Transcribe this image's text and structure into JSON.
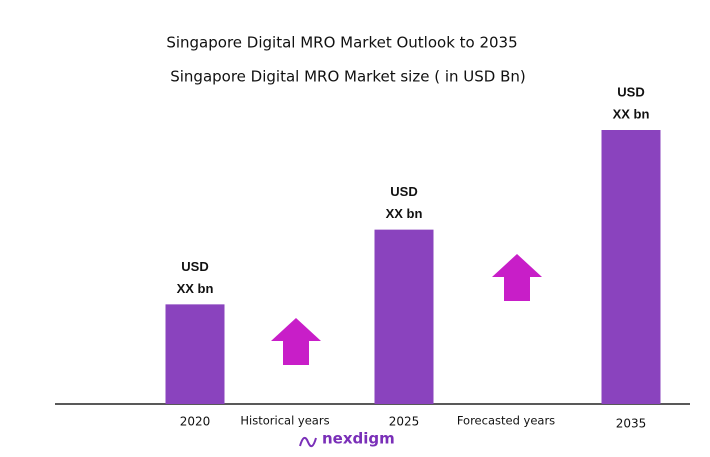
{
  "chart_data": {
    "type": "bar",
    "title": "Singapore Digital MRO Market Outlook to 2035",
    "subtitle": "Singapore Digital MRO Market size ( in USD Bn)",
    "categories": [
      "2020",
      "2025",
      "2035"
    ],
    "values": [
      100,
      175,
      275
    ],
    "value_labels": [
      [
        "USD",
        "XX bn"
      ],
      [
        "USD",
        "XX bn"
      ],
      [
        "USD",
        "XX bn"
      ]
    ],
    "color": "#8a43be",
    "annotations": [
      "Historical years",
      "Forecasted years"
    ],
    "logo": "nexdigm"
  }
}
